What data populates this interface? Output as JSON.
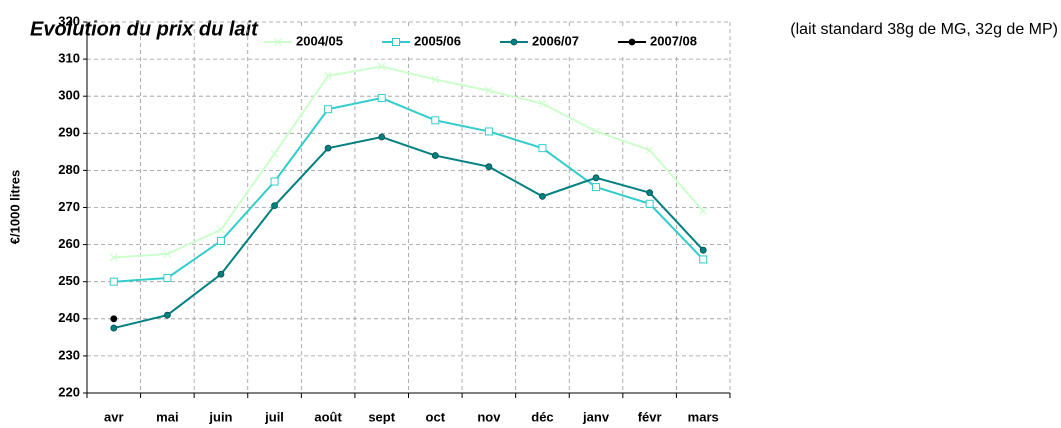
{
  "chart_data": {
    "type": "line",
    "title": "Evolution du prix du lait",
    "subtitle": "(lait standard 38g de MG, 32g de MP)",
    "y_label": "€/1000 litres",
    "categories": [
      "avr",
      "mai",
      "juin",
      "juil",
      "août",
      "sept",
      "oct",
      "nov",
      "déc",
      "janv",
      "févr",
      "mars"
    ],
    "series": [
      {
        "name": "2004/05",
        "color": "#ccffcc",
        "marker": "x",
        "values": [
          256.5,
          257.5,
          264,
          284.5,
          305.5,
          308,
          304.5,
          301.5,
          298,
          290.5,
          285.5,
          269
        ]
      },
      {
        "name": "2005/06",
        "color": "#33cccc",
        "marker": "square",
        "values": [
          250,
          251,
          261,
          277,
          296.5,
          299.5,
          293.5,
          290.5,
          286,
          275.5,
          271,
          256
        ]
      },
      {
        "name": "2006/07",
        "color": "#008080",
        "marker": "circle",
        "values": [
          237.5,
          241,
          252,
          270.5,
          286,
          289,
          284,
          281,
          273,
          278,
          274,
          258.5
        ]
      },
      {
        "name": "2007/08",
        "color": "#000000",
        "marker": "circle",
        "values": [
          240,
          null,
          null,
          null,
          null,
          null,
          null,
          null,
          null,
          null,
          null,
          null
        ]
      }
    ],
    "ylim": [
      220,
      320
    ],
    "yticks": [
      220,
      230,
      240,
      250,
      260,
      270,
      280,
      290,
      300,
      310,
      320
    ],
    "grid": true,
    "legend": "top"
  }
}
